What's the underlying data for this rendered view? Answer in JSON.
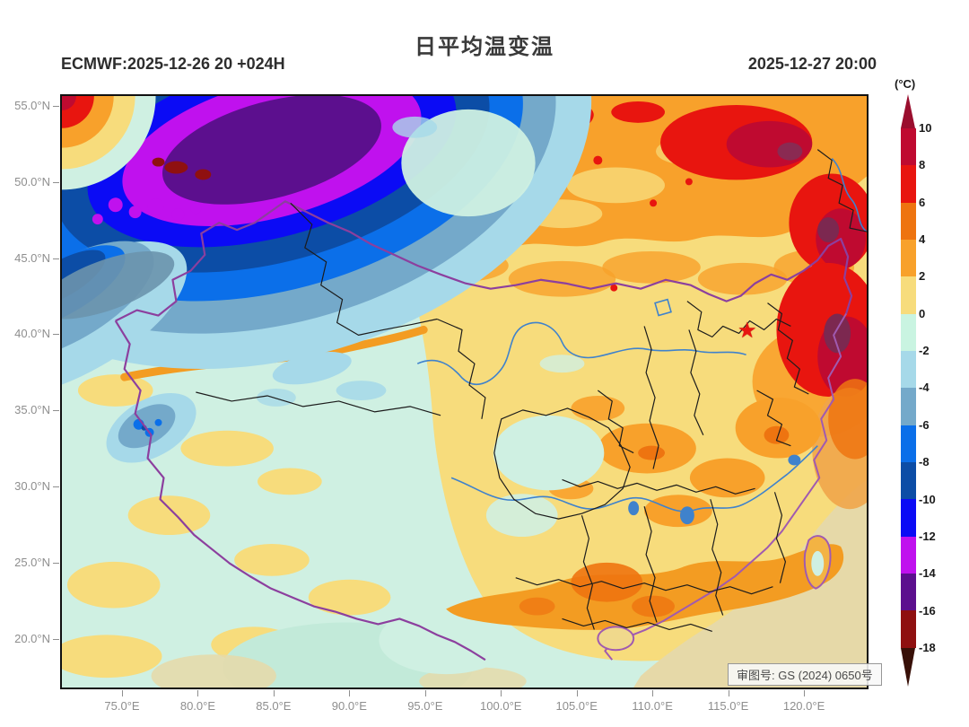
{
  "header": {
    "title": "日平均温变温",
    "run_label": "ECMWF:2025-12-26 20 +024H",
    "valid_label": "2025-12-27 20:00"
  },
  "axes": {
    "lat_tick_labels": [
      "55.0°N",
      "50.0°N",
      "45.0°N",
      "40.0°N",
      "35.0°N",
      "30.0°N",
      "25.0°N",
      "20.0°N"
    ],
    "lon_tick_labels": [
      "75.0°E",
      "80.0°E",
      "85.0°E",
      "90.0°E",
      "95.0°E",
      "100.0°E",
      "105.0°E",
      "110.0°E",
      "115.0°E",
      "120.0°E"
    ]
  },
  "colorbar": {
    "unit_label": "(°C)",
    "tick_labels": [
      "10",
      "8",
      "6",
      "4",
      "2",
      "0",
      "-2",
      "-4",
      "-6",
      "-8",
      "-10",
      "-12",
      "-14",
      "-16",
      "-18"
    ],
    "segment_colors": [
      "#bf0a30",
      "#e8150f",
      "#ee7410",
      "#f8a12b",
      "#f7dc7c",
      "#c9f4e1",
      "#a6d9e9",
      "#74a9ca",
      "#0b6fe9",
      "#0c4da6",
      "#0b0bf5",
      "#c011ee",
      "#5c0f8e",
      "#8f1010"
    ],
    "arrow_top_color": "#9a0e2e",
    "arrow_bottom_color": "#381008"
  },
  "map": {
    "approval_label": "审图号: GS (2024) 0650号",
    "star_marker": {
      "symbol": "★",
      "color": "#e8150f",
      "approx_location": "Beijing (~116.4°E, 40.0°N)"
    }
  },
  "chart_data": {
    "type": "heatmap",
    "title": "日平均温变温",
    "model_run": "ECMWF 2025-12-26 20 UTC+8, +024H",
    "valid_time": "2025-12-27 20:00",
    "unit": "°C",
    "lon_range": [
      71,
      124.3
    ],
    "lat_range": [
      16.5,
      55.8
    ],
    "lon_ticks": [
      75,
      80,
      85,
      90,
      95,
      100,
      105,
      110,
      115,
      120
    ],
    "lat_ticks": [
      55,
      50,
      45,
      40,
      35,
      30,
      25,
      20
    ],
    "colorbar_levels": [
      10,
      8,
      6,
      4,
      2,
      0,
      -2,
      -4,
      -6,
      -8,
      -10,
      -12,
      -14,
      -16,
      -18
    ],
    "colorbar_colors_top_to_bottom": [
      "#9a0e2e",
      ">10",
      "#bf0a30",
      "8..10",
      "#e8150f",
      "6..8",
      "#ee7410",
      "4..6",
      "#f8a12b",
      "2..4",
      "#f7dc7c",
      "0..2",
      "#c9f4e1",
      "-2..0",
      "#a6d9e9",
      "-4..-2",
      "#74a9ca",
      "-6..-4",
      "#0b6fe9",
      "-8..-6",
      "#0c4da6",
      "-10..-8",
      "#0b0bf5",
      "-12..-10",
      "#c011ee",
      "-14..-12",
      "#5c0f8e",
      "-16..-14",
      "#8f1010",
      "-18..-16",
      "#381008",
      "<-18"
    ],
    "legend_position": "right",
    "grid": false,
    "regions": [
      {
        "area": "northwest quadrant (72-92E, 44-56N)",
        "value_range_c": "-6 to -18",
        "note": "broad diagonal cooling band; magenta/dark-violet core -12 to -16 with small -16 to -18 spots near 50-54N"
      },
      {
        "area": "extreme northwest map corner",
        "value_range_c": "+2 to +8",
        "note": "small warm bullseye arc at corner"
      },
      {
        "area": "north and northeast (95-124E, 42-56N)",
        "value_range_c": "+2 to +10",
        "note": "broad orange warming; red/crimson cores +6 to +10 near 110-122E, 47-53N"
      },
      {
        "area": "northeast coast (119-124E, 36-42N)",
        "value_range_c": "+6 to +10",
        "note": "red/crimson patch with small deeper core"
      },
      {
        "area": "Xinjiang south / Tibetan Plateau (75-100E, 27-42N)",
        "value_range_c": "-2 to +2",
        "note": "mint/gold mosaic; isolated -6 to -10 blue speckles over Karakoram; orange streak along Tianshan"
      },
      {
        "area": "central and east China (100-122E, 25-40N)",
        "value_range_c": "0 to +4",
        "note": "gold with scattered orange +2 to +4 patches; weak mint patch over Sichuan Basin"
      },
      {
        "area": "south China (104-118E, 21-26N)",
        "value_range_c": "+2 to +6",
        "note": "orange band over Guangxi/Guangdong; orange northern Taiwan"
      },
      {
        "area": "far south / Bay of Bengal and South China Sea",
        "value_range_c": "-2 to +2",
        "note": "mint and muted tan sea areas"
      }
    ],
    "annotations": [
      {
        "type": "star",
        "label": "Beijing",
        "lon": 116.4,
        "lat": 40.0
      },
      {
        "type": "stamp",
        "text": "审图号: GS (2024) 0650号"
      }
    ]
  }
}
